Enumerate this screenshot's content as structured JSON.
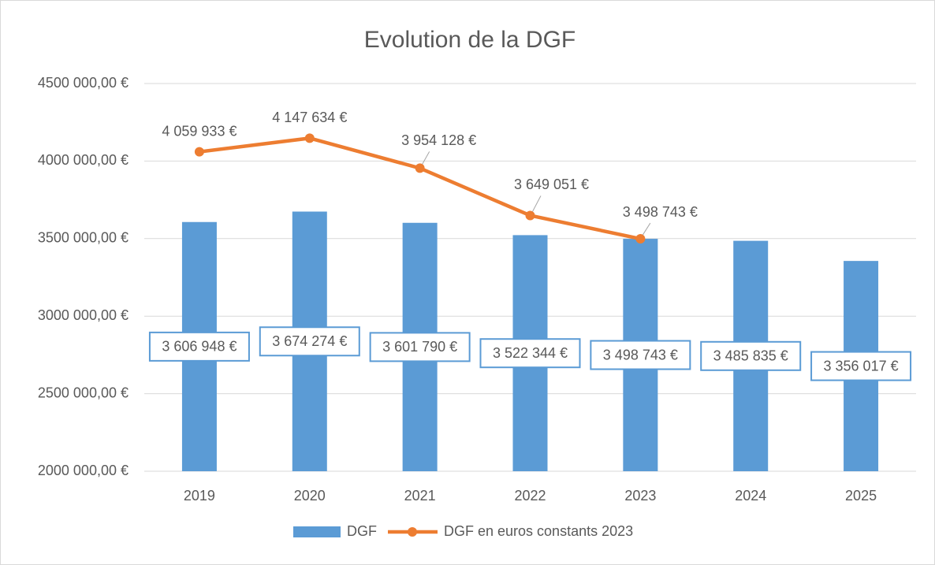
{
  "chart_data": {
    "type": "bar",
    "title": "Evolution de la DGF",
    "categories": [
      "2019",
      "2020",
      "2021",
      "2022",
      "2023",
      "2024",
      "2025"
    ],
    "series": [
      {
        "name": "DGF",
        "type": "bar",
        "color": "#5b9bd5",
        "values": [
          3606948,
          3674274,
          3601790,
          3522344,
          3498743,
          3485835,
          3356017
        ],
        "value_labels": [
          "3 606 948 €",
          "3 674 274 €",
          "3 601 790 €",
          "3 522 344 €",
          "3 498 743 €",
          "3 485 835 €",
          "3 356 017 €"
        ]
      },
      {
        "name": "DGF en euros constants 2023",
        "type": "line",
        "color": "#ed7d31",
        "values": [
          4059933,
          4147634,
          3954128,
          3649051,
          3498743,
          null,
          null
        ],
        "value_labels": [
          "4 059 933 €",
          "4 147 634 €",
          "3 954 128 €",
          "3 649 051 €",
          "3 498 743 €",
          null,
          null
        ]
      }
    ],
    "ylim": [
      2000000,
      4500000
    ],
    "yticks": [
      {
        "value": 2000000,
        "label": "2000 000,00 €"
      },
      {
        "value": 2500000,
        "label": "2500 000,00 €"
      },
      {
        "value": 3000000,
        "label": "3000 000,00 €"
      },
      {
        "value": 3500000,
        "label": "3500 000,00 €"
      },
      {
        "value": 4000000,
        "label": "4000 000,00 €"
      },
      {
        "value": 4500000,
        "label": "4500 000,00 €"
      }
    ],
    "grid": true,
    "legend": "bottom"
  }
}
